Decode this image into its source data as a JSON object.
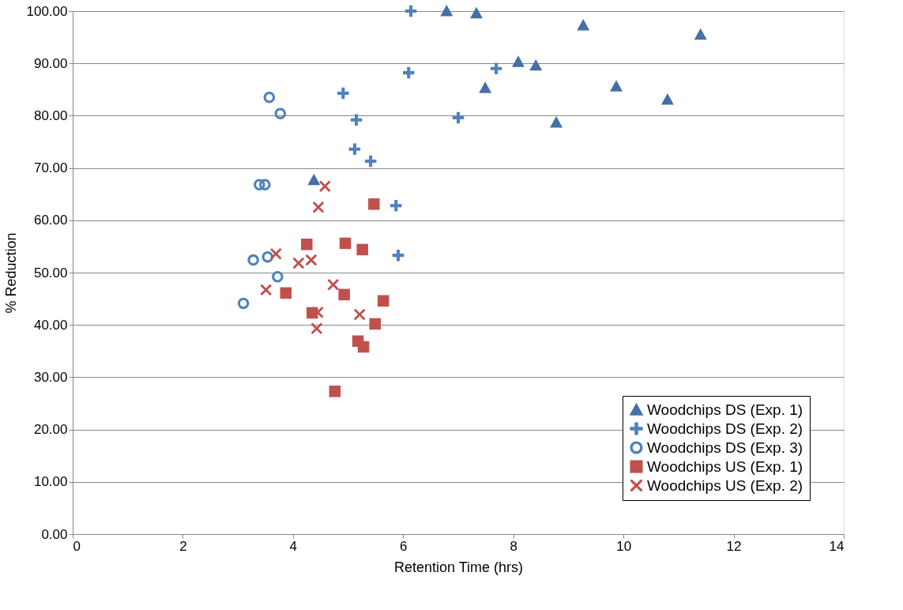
{
  "chart_data": {
    "type": "scatter",
    "xlabel": "Retention Time (hrs)",
    "ylabel": "% Reduction",
    "xlim": [
      0,
      14
    ],
    "xticks": [
      0,
      2,
      4,
      6,
      8,
      10,
      12,
      14
    ],
    "ylim": [
      0,
      100
    ],
    "yticks": [
      {
        "value": 0,
        "label": "0.00"
      },
      {
        "value": 10,
        "label": "10.00"
      },
      {
        "value": 20,
        "label": "20.00"
      },
      {
        "value": 30,
        "label": "30.00"
      },
      {
        "value": 40,
        "label": "40.00"
      },
      {
        "value": 50,
        "label": "50.00"
      },
      {
        "value": 60,
        "label": "60.00"
      },
      {
        "value": 70,
        "label": "70.00"
      },
      {
        "value": 80,
        "label": "80.00"
      },
      {
        "value": 90,
        "label": "90.00"
      },
      {
        "value": 100,
        "label": "100.00"
      }
    ],
    "grid": "y",
    "legend": "bottom right",
    "series": [
      {
        "name": "Woodchips DS (Exp. 1)",
        "color": "#4470a8",
        "marker": "triangle",
        "x": [
          6.79,
          7.33,
          9.27,
          11.4,
          7.49,
          8.09,
          8.41,
          8.78,
          9.87,
          10.8,
          4.38
        ],
        "values": [
          100.0,
          99.6,
          97.3,
          95.5,
          85.3,
          90.3,
          89.6,
          78.7,
          85.6,
          83.1,
          67.7
        ]
      },
      {
        "name": "Woodchips DS (Exp. 2)",
        "color": "#4f81bd",
        "marker": "cross",
        "x": [
          6.14,
          6.1,
          4.91,
          5.15,
          7.0,
          7.69,
          5.12,
          5.41,
          5.87,
          5.91
        ],
        "values": [
          100.0,
          88.2,
          84.3,
          79.2,
          79.6,
          89.0,
          73.6,
          71.3,
          62.8,
          53.3
        ]
      },
      {
        "name": "Woodchips DS (Exp. 3)",
        "color": "#4f81bd",
        "marker": "circle",
        "x": [
          3.57,
          3.77,
          3.39,
          3.49,
          3.28,
          3.54,
          3.72,
          3.1
        ],
        "values": [
          83.5,
          80.4,
          66.8,
          66.8,
          52.4,
          53.0,
          49.2,
          44.1
        ]
      },
      {
        "name": "Woodchips US (Exp. 1)",
        "color": "#c0504d",
        "marker": "square",
        "x": [
          5.47,
          4.25,
          4.95,
          5.26,
          3.87,
          4.93,
          5.64,
          4.35,
          5.49,
          5.18,
          5.28,
          4.76
        ],
        "values": [
          63.1,
          55.4,
          55.6,
          54.4,
          46.1,
          45.8,
          44.6,
          42.3,
          40.2,
          36.9,
          35.8,
          27.3
        ]
      },
      {
        "name": "Woodchips US (Exp. 2)",
        "color": "#c0504d",
        "marker": "x",
        "x": [
          4.58,
          4.46,
          3.69,
          4.1,
          4.33,
          3.51,
          4.73,
          4.45,
          4.43,
          5.21
        ],
        "values": [
          66.5,
          62.5,
          53.6,
          51.8,
          52.4,
          46.7,
          47.7,
          42.4,
          39.3,
          42.0
        ]
      }
    ]
  }
}
